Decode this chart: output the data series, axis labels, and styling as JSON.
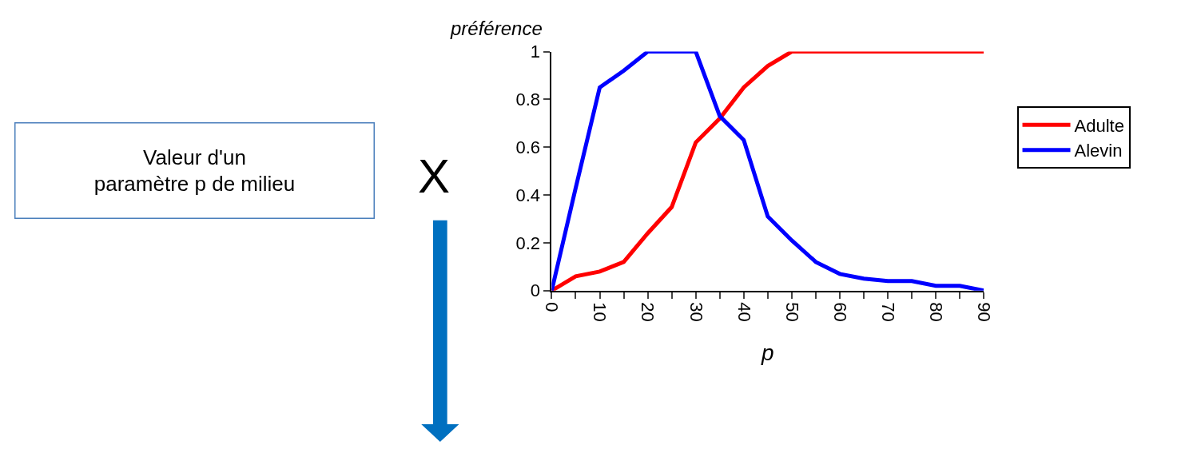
{
  "chart_data": {
    "type": "line",
    "xlabel": "p",
    "ylabel": "préférence",
    "x": [
      0,
      5,
      10,
      15,
      20,
      25,
      30,
      35,
      40,
      45,
      50,
      55,
      60,
      65,
      70,
      75,
      80,
      85,
      90
    ],
    "series": [
      {
        "name": "Adulte",
        "color": "#ff0000",
        "values": [
          0,
          0.06,
          0.08,
          0.12,
          0.24,
          0.35,
          0.62,
          0.72,
          0.85,
          0.94,
          1,
          1,
          1,
          1,
          1,
          1,
          1,
          1,
          1
        ]
      },
      {
        "name": "Alevin",
        "color": "#0000ff",
        "values": [
          0,
          0.43,
          0.85,
          0.92,
          1,
          1,
          1,
          0.73,
          0.63,
          0.31,
          0.21,
          0.12,
          0.07,
          0.05,
          0.04,
          0.04,
          0.02,
          0.02,
          0
        ]
      }
    ],
    "xlim": [
      0,
      90
    ],
    "xticks": [
      0,
      {
        "value": 5,
        "label": null
      },
      10,
      {
        "value": 15,
        "label": null
      },
      20,
      {
        "value": 25,
        "label": null
      },
      30,
      {
        "value": 35,
        "label": null
      },
      40,
      {
        "value": 45,
        "label": null
      },
      50,
      {
        "value": 55,
        "label": null
      },
      60,
      {
        "value": 65,
        "label": null
      },
      70,
      {
        "value": 75,
        "label": null
      },
      80,
      {
        "value": 85,
        "label": null
      },
      90
    ],
    "ylim": [
      0,
      1
    ],
    "yticks": [
      0,
      0.2,
      0.4,
      0.6,
      0.8,
      1
    ],
    "legend": "right",
    "marker": "none",
    "line_style": "solid",
    "annotations": [
      "Valeur d'un\nparamètre p de milieu",
      "X"
    ]
  }
}
